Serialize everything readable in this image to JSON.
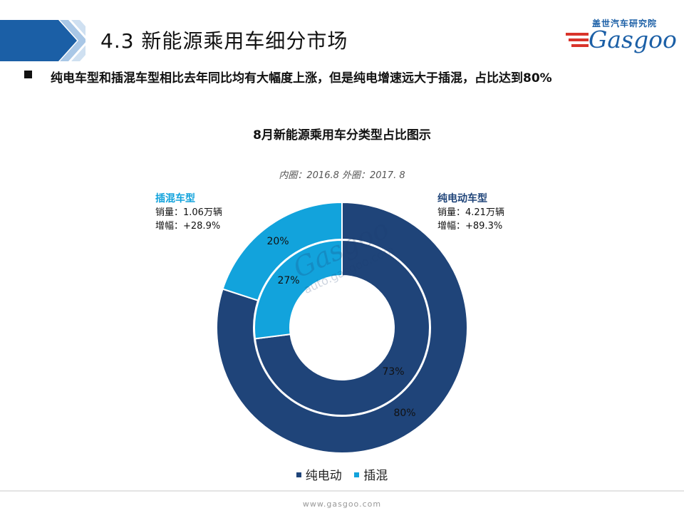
{
  "slide": {
    "section_title": "4.3  新能源乘用车细分市场",
    "bullet": "纯电车型和插混车型相比去年同比均有大幅度上涨，但是纯电增速远大于插混，占比达到80%",
    "logo_cn": "盖世汽车研究院",
    "logo_en": "Gasgoo",
    "footer_url": "www.gasgoo.com",
    "watermark_text": "Gasgoo",
    "watermark_url": "auto.gasgoo.com",
    "colors": {
      "header_band": "#1b5fa6",
      "bev": "#1f4479",
      "phev": "#12a3dc"
    }
  },
  "chart_data": {
    "type": "pie",
    "variant": "double-donut",
    "title": "8月新能源乘用车分类型占比图示",
    "subtitle": "内圈：2016.8   外圈：2017. 8",
    "categories": [
      "纯电动",
      "插混"
    ],
    "series": [
      {
        "ring": "inner",
        "period": "2016.8",
        "values": [
          73,
          27
        ],
        "labels": [
          "73%",
          "27%"
        ]
      },
      {
        "ring": "outer",
        "period": "2017.8",
        "values": [
          80,
          20
        ],
        "labels": [
          "80%",
          "20%"
        ]
      }
    ],
    "legend": {
      "position": "bottom",
      "items": [
        "纯电动",
        "插混"
      ]
    },
    "annotations": [
      {
        "category": "插混",
        "title": "插混车型",
        "line1": "销量：1.06万辆",
        "line2": "增幅：+28.9%"
      },
      {
        "category": "纯电动",
        "title": "纯电动车型",
        "line1": "销量：4.21万辆",
        "line2": "增幅：+89.3%"
      }
    ]
  }
}
